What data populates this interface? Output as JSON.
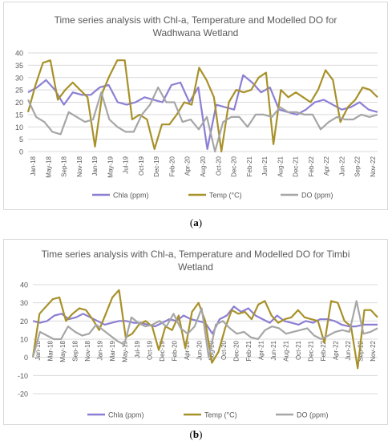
{
  "chart_data": [
    {
      "type": "line",
      "title": [
        "Time series analysis with Chl-a, Temperature and Modelled DO for",
        "Wadhwana Wetland"
      ],
      "xlabel": "",
      "ylabel": "",
      "ylim": [
        0,
        40
      ],
      "yticks": [
        0,
        5,
        10,
        15,
        20,
        25,
        30,
        35,
        40
      ],
      "xtick_labels": [
        "Jan-18",
        "Mar-18",
        "May-18",
        "Jul-18",
        "Sep-18",
        "Nov-18",
        "Jan-19",
        "Mar-19",
        "May-19",
        "Jul-19",
        "Oct-19",
        "Dec-19",
        "Feb-20",
        "Apr-20",
        "Jun-20",
        "Aug-20",
        "Oct-20",
        "Dec-20",
        "Feb-21",
        "Apr-21",
        "Jun-21",
        "Aug-21",
        "Oct-21",
        "Dec-21",
        "Feb-22",
        "Apr-22",
        "Jun-22",
        "Aug-22",
        "Oct-22",
        "Nov-22"
      ],
      "xtick_labels_shown": [
        "Jan-18",
        "May-18",
        "Sep-18",
        "Nov-18",
        "Jan-19",
        "May-19",
        "Jul-19",
        "Oct-19",
        "Dec-19",
        "Feb-20",
        "Apr-20",
        "Aug-20",
        "Oct-20",
        "Dec-20",
        "Feb-21",
        "Jun-21",
        "Aug-21",
        "Dec-21",
        "Feb-22",
        "Apr-22",
        "Jun-22",
        "Sep-22",
        "Nov-22"
      ],
      "grid": true,
      "legend": "bottom",
      "series": [
        {
          "name": "Chla (ppm)",
          "color": "#8b7fd4",
          "values": [
            24,
            26,
            29,
            25,
            19,
            24,
            23,
            23,
            26,
            27,
            20,
            19,
            20,
            22,
            21,
            20,
            27,
            28,
            20,
            26,
            1,
            19,
            18,
            17,
            31,
            28,
            24,
            26,
            17,
            16,
            15,
            17,
            20,
            21,
            19,
            17,
            18,
            20,
            17,
            16
          ]
        },
        {
          "name": "Temp (°C)",
          "color": "#a8912a",
          "values": [
            16,
            27,
            36,
            37,
            21,
            25,
            28,
            25,
            22,
            2,
            24,
            31,
            37,
            37,
            13,
            15,
            13,
            1,
            11,
            11,
            15,
            20,
            19,
            34,
            29,
            22,
            0,
            20,
            25,
            24,
            25,
            30,
            32,
            3,
            25,
            22,
            24,
            22,
            20,
            25,
            33,
            29,
            12,
            18,
            21,
            26,
            25,
            22
          ]
        },
        {
          "name": "DO (ppm)",
          "color": "#a6a6a6",
          "values": [
            21,
            14,
            12,
            8,
            7,
            16,
            14,
            12,
            13,
            24,
            13,
            10,
            8,
            8,
            15,
            19,
            26,
            20,
            20,
            12,
            13,
            9,
            14,
            0,
            12,
            14,
            14,
            10,
            15,
            15,
            14,
            18,
            16,
            16,
            15,
            15,
            9,
            12,
            14,
            13,
            13,
            15,
            14,
            15
          ]
        }
      ]
    },
    {
      "type": "line",
      "title": [
        "Time series analysis with Chl-a, Temperature and Modelled DO for Timbi",
        "Wetland"
      ],
      "xlabel": "",
      "ylabel": "",
      "ylim": [
        -20,
        40
      ],
      "yticks": [
        -20,
        -10,
        0,
        10,
        20,
        30,
        40
      ],
      "xtick_labels": [
        "Jan-18",
        "Mar-18",
        "May-18",
        "Sep-18",
        "Nov-18",
        "Jan-19",
        "Mar-19",
        "May-19",
        "Jul-19",
        "Oct-19",
        "Dec-19",
        "Feb-20",
        "Apr-20",
        "Jun-20",
        "Aug-20",
        "Oct-20",
        "Dec-20",
        "Feb-21",
        "Apr-21",
        "Jun-21",
        "Aug-21",
        "Oct-21",
        "Dec-21",
        "Feb-22",
        "Apr-22",
        "Jun-22",
        "Sep-22",
        "Nov-22"
      ],
      "grid": true,
      "legend": "bottom",
      "series": [
        {
          "name": "Chla (ppm)",
          "color": "#8b7fd4",
          "values": [
            20,
            19,
            20,
            23,
            24,
            21,
            22,
            24,
            22,
            20,
            18,
            19,
            20,
            20,
            19,
            19,
            18,
            17,
            19,
            21,
            20,
            23,
            21,
            20,
            19,
            13,
            21,
            23,
            28,
            25,
            27,
            23,
            21,
            19,
            23,
            20,
            19,
            18,
            20,
            19,
            21,
            21,
            20,
            18,
            17,
            17,
            18,
            18,
            18
          ]
        },
        {
          "name": "Temp (°C)",
          "color": "#a8912a",
          "values": [
            0,
            24,
            28,
            32,
            33,
            20,
            24,
            27,
            26,
            21,
            15,
            24,
            33,
            37,
            11,
            13,
            18,
            20,
            17,
            4,
            17,
            15,
            23,
            5,
            25,
            30,
            20,
            -3,
            3,
            16,
            26,
            24,
            25,
            21,
            29,
            31,
            23,
            19,
            21,
            22,
            26,
            22,
            21,
            20,
            8,
            31,
            30,
            20,
            17,
            -6,
            26,
            26,
            22
          ]
        },
        {
          "name": "DO (ppm)",
          "color": "#a6a6a6",
          "values": [
            0,
            14,
            12,
            10,
            10,
            17,
            14,
            12,
            13,
            18,
            15,
            12,
            9,
            7,
            22,
            19,
            17,
            18,
            20,
            17,
            24,
            16,
            13,
            17,
            27,
            0,
            18,
            20,
            16,
            13,
            14,
            11,
            10,
            15,
            17,
            16,
            13,
            14,
            15,
            16,
            12,
            10,
            12,
            14,
            15,
            14,
            31,
            13,
            14,
            16
          ]
        }
      ]
    }
  ]
}
